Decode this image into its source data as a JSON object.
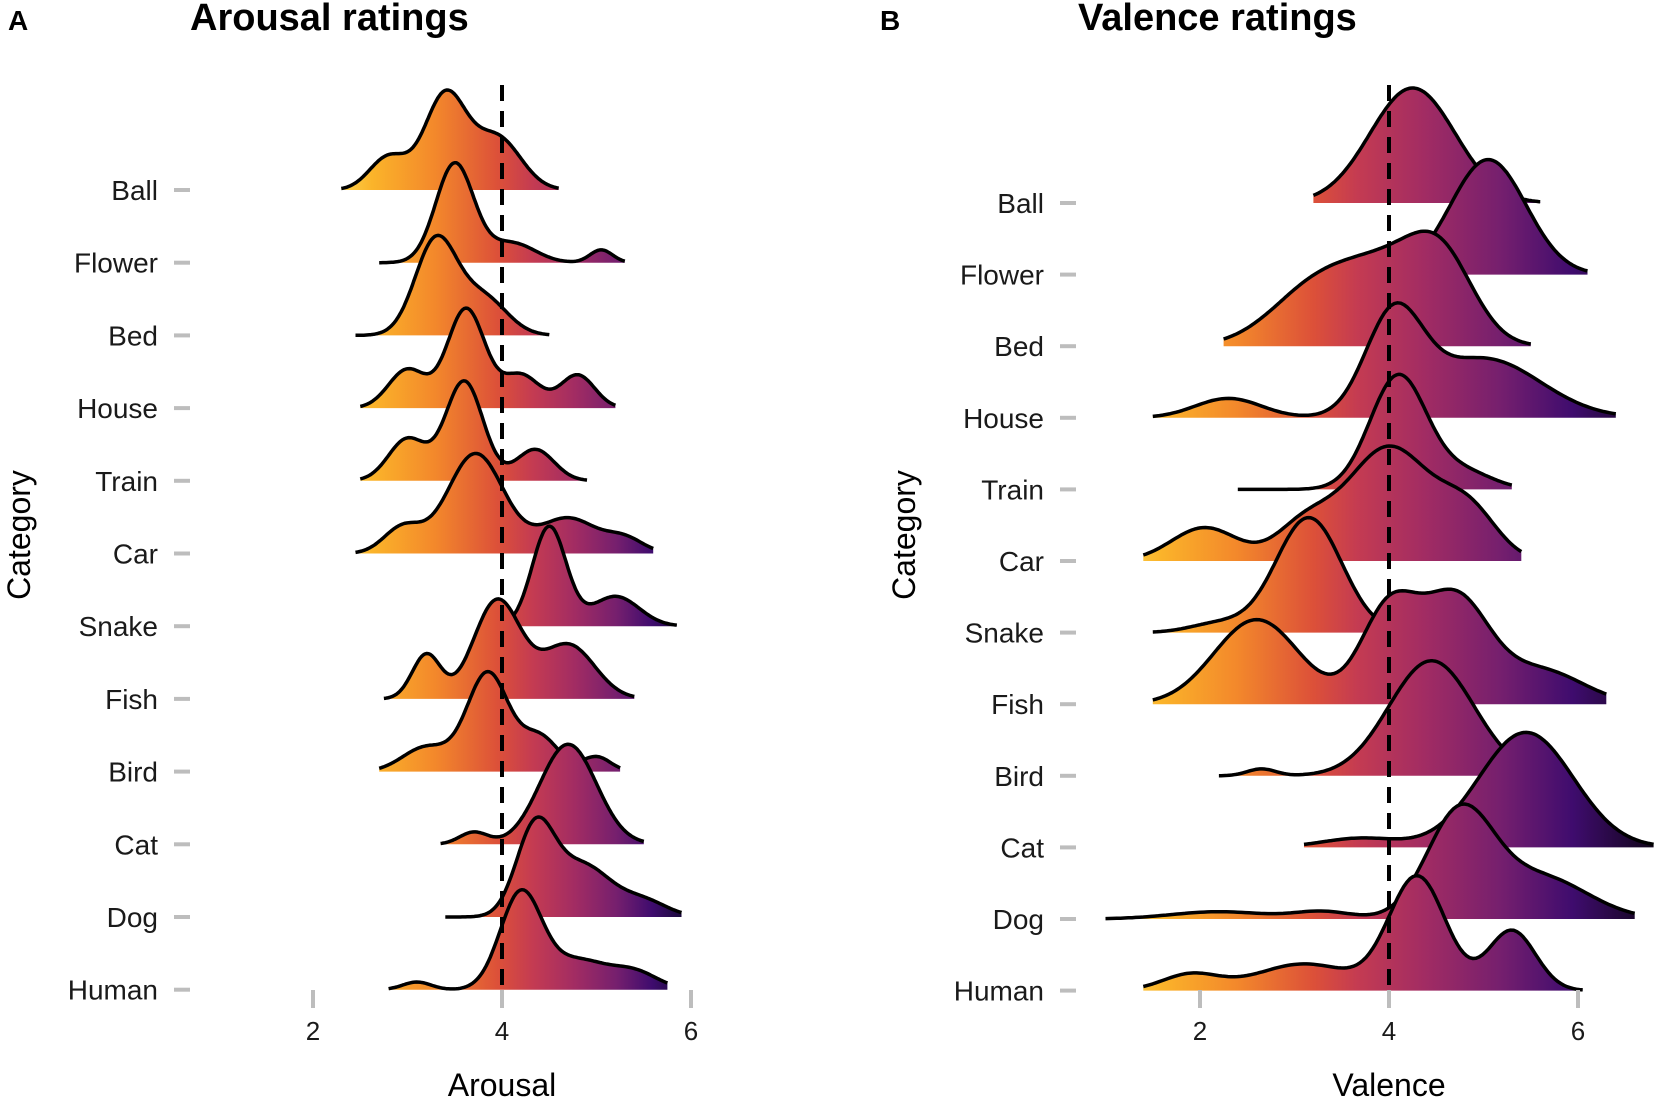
{
  "chart_data": [
    {
      "type": "ridgeline",
      "panel": "A",
      "title": "Arousal ratings",
      "xlabel": "Arousal",
      "ylabel": "Category",
      "xticks": [
        2,
        4,
        6
      ],
      "reference_line": 4,
      "categories": [
        "Ball",
        "Flower",
        "Bed",
        "House",
        "Train",
        "Car",
        "Snake",
        "Fish",
        "Bird",
        "Cat",
        "Dog",
        "Human"
      ],
      "series": [
        {
          "name": "Ball",
          "range": [
            2.3,
            4.6
          ],
          "peaks": [
            [
              2.8,
              0.35,
              0.2
            ],
            [
              3.4,
              1.0,
              0.22
            ],
            [
              3.95,
              0.55,
              0.25
            ]
          ]
        },
        {
          "name": "Flower",
          "range": [
            2.7,
            5.3
          ],
          "peaks": [
            [
              3.5,
              1.0,
              0.2
            ],
            [
              4.1,
              0.2,
              0.25
            ],
            [
              5.05,
              0.13,
              0.12
            ]
          ]
        },
        {
          "name": "Bed",
          "range": [
            2.45,
            4.5
          ],
          "peaks": [
            [
              3.3,
              1.0,
              0.22
            ],
            [
              3.8,
              0.4,
              0.25
            ]
          ]
        },
        {
          "name": "House",
          "range": [
            2.5,
            5.2
          ],
          "peaks": [
            [
              3.0,
              0.35,
              0.2
            ],
            [
              3.62,
              0.9,
              0.2
            ],
            [
              4.2,
              0.3,
              0.2
            ],
            [
              4.8,
              0.3,
              0.18
            ]
          ]
        },
        {
          "name": "Train",
          "range": [
            2.5,
            4.9
          ],
          "peaks": [
            [
              3.0,
              0.4,
              0.2
            ],
            [
              3.6,
              0.95,
              0.2
            ],
            [
              4.35,
              0.3,
              0.2
            ]
          ]
        },
        {
          "name": "Car",
          "range": [
            2.45,
            5.6
          ],
          "peaks": [
            [
              2.95,
              0.22,
              0.2
            ],
            [
              3.72,
              0.85,
              0.3
            ],
            [
              4.7,
              0.3,
              0.3
            ],
            [
              5.3,
              0.12,
              0.2
            ]
          ]
        },
        {
          "name": "Snake",
          "range": [
            4.1,
            5.85
          ],
          "peaks": [
            [
              4.5,
              1.0,
              0.18
            ],
            [
              5.2,
              0.3,
              0.25
            ]
          ]
        },
        {
          "name": "Fish",
          "range": [
            2.75,
            5.4
          ],
          "peaks": [
            [
              3.2,
              0.45,
              0.15
            ],
            [
              3.95,
              1.0,
              0.25
            ],
            [
              4.7,
              0.55,
              0.28
            ]
          ]
        },
        {
          "name": "Bird",
          "range": [
            2.7,
            5.25
          ],
          "peaks": [
            [
              3.2,
              0.25,
              0.25
            ],
            [
              3.85,
              1.0,
              0.22
            ],
            [
              4.4,
              0.35,
              0.2
            ],
            [
              5.0,
              0.15,
              0.15
            ]
          ]
        },
        {
          "name": "Cat",
          "range": [
            3.35,
            5.5
          ],
          "peaks": [
            [
              3.7,
              0.12,
              0.15
            ],
            [
              4.7,
              1.0,
              0.3
            ]
          ]
        },
        {
          "name": "Dog",
          "range": [
            3.4,
            5.9
          ],
          "peaks": [
            [
              4.35,
              1.0,
              0.2
            ],
            [
              4.85,
              0.6,
              0.3
            ],
            [
              5.5,
              0.18,
              0.25
            ]
          ]
        },
        {
          "name": "Human",
          "range": [
            2.8,
            5.75
          ],
          "peaks": [
            [
              3.1,
              0.08,
              0.15
            ],
            [
              4.2,
              1.0,
              0.22
            ],
            [
              4.8,
              0.3,
              0.3
            ],
            [
              5.4,
              0.18,
              0.25
            ]
          ]
        }
      ]
    },
    {
      "type": "ridgeline",
      "panel": "B",
      "title": "Valence ratings",
      "xlabel": "Valence",
      "ylabel": "Category",
      "xticks": [
        2,
        4,
        6
      ],
      "reference_line": 4,
      "categories": [
        "Ball",
        "Flower",
        "Bed",
        "House",
        "Train",
        "Car",
        "Snake",
        "Fish",
        "Bird",
        "Cat",
        "Dog",
        "Human"
      ],
      "series": [
        {
          "name": "Ball",
          "range": [
            3.2,
            5.6
          ],
          "peaks": [
            [
              4.25,
              1.0,
              0.45
            ]
          ]
        },
        {
          "name": "Flower",
          "range": [
            3.55,
            6.1
          ],
          "peaks": [
            [
              5.05,
              1.0,
              0.4
            ]
          ]
        },
        {
          "name": "Bed",
          "range": [
            2.25,
            5.5
          ],
          "peaks": [
            [
              3.3,
              0.5,
              0.5
            ],
            [
              4.0,
              0.4,
              0.4
            ],
            [
              4.55,
              0.65,
              0.35
            ]
          ]
        },
        {
          "name": "House",
          "range": [
            1.5,
            6.4
          ],
          "peaks": [
            [
              2.3,
              0.18,
              0.35
            ],
            [
              4.05,
              0.9,
              0.3
            ],
            [
              5.0,
              0.55,
              0.6
            ]
          ]
        },
        {
          "name": "Train",
          "range": [
            2.4,
            5.3
          ],
          "peaks": [
            [
              4.1,
              1.0,
              0.3
            ],
            [
              4.8,
              0.15,
              0.3
            ]
          ]
        },
        {
          "name": "Car",
          "range": [
            1.4,
            5.4
          ],
          "peaks": [
            [
              2.05,
              0.22,
              0.35
            ],
            [
              3.1,
              0.22,
              0.3
            ],
            [
              4.0,
              0.75,
              0.45
            ],
            [
              4.85,
              0.3,
              0.3
            ]
          ]
        },
        {
          "name": "Snake",
          "range": [
            1.5,
            4.5
          ],
          "peaks": [
            [
              3.15,
              1.0,
              0.35
            ],
            [
              2.2,
              0.08,
              0.3
            ]
          ]
        },
        {
          "name": "Fish",
          "range": [
            1.5,
            6.3
          ],
          "peaks": [
            [
              2.6,
              0.45,
              0.45
            ],
            [
              4.0,
              0.5,
              0.3
            ],
            [
              4.7,
              0.55,
              0.35
            ],
            [
              5.6,
              0.18,
              0.45
            ]
          ]
        },
        {
          "name": "Bird",
          "range": [
            2.2,
            5.4
          ],
          "peaks": [
            [
              2.65,
              0.06,
              0.15
            ],
            [
              4.45,
              1.0,
              0.45
            ]
          ]
        },
        {
          "name": "Cat",
          "range": [
            3.1,
            6.8
          ],
          "peaks": [
            [
              3.7,
              0.08,
              0.4
            ],
            [
              5.45,
              1.0,
              0.5
            ]
          ]
        },
        {
          "name": "Dog",
          "range": [
            1.0,
            6.6
          ],
          "peaks": [
            [
              2.2,
              0.07,
              0.5
            ],
            [
              3.3,
              0.07,
              0.3
            ],
            [
              4.75,
              1.0,
              0.35
            ],
            [
              5.6,
              0.4,
              0.5
            ]
          ]
        },
        {
          "name": "Human",
          "range": [
            1.4,
            6.05
          ],
          "peaks": [
            [
              1.9,
              0.12,
              0.3
            ],
            [
              3.1,
              0.2,
              0.5
            ],
            [
              4.3,
              0.85,
              0.3
            ],
            [
              5.3,
              0.45,
              0.25
            ]
          ]
        }
      ]
    }
  ]
}
